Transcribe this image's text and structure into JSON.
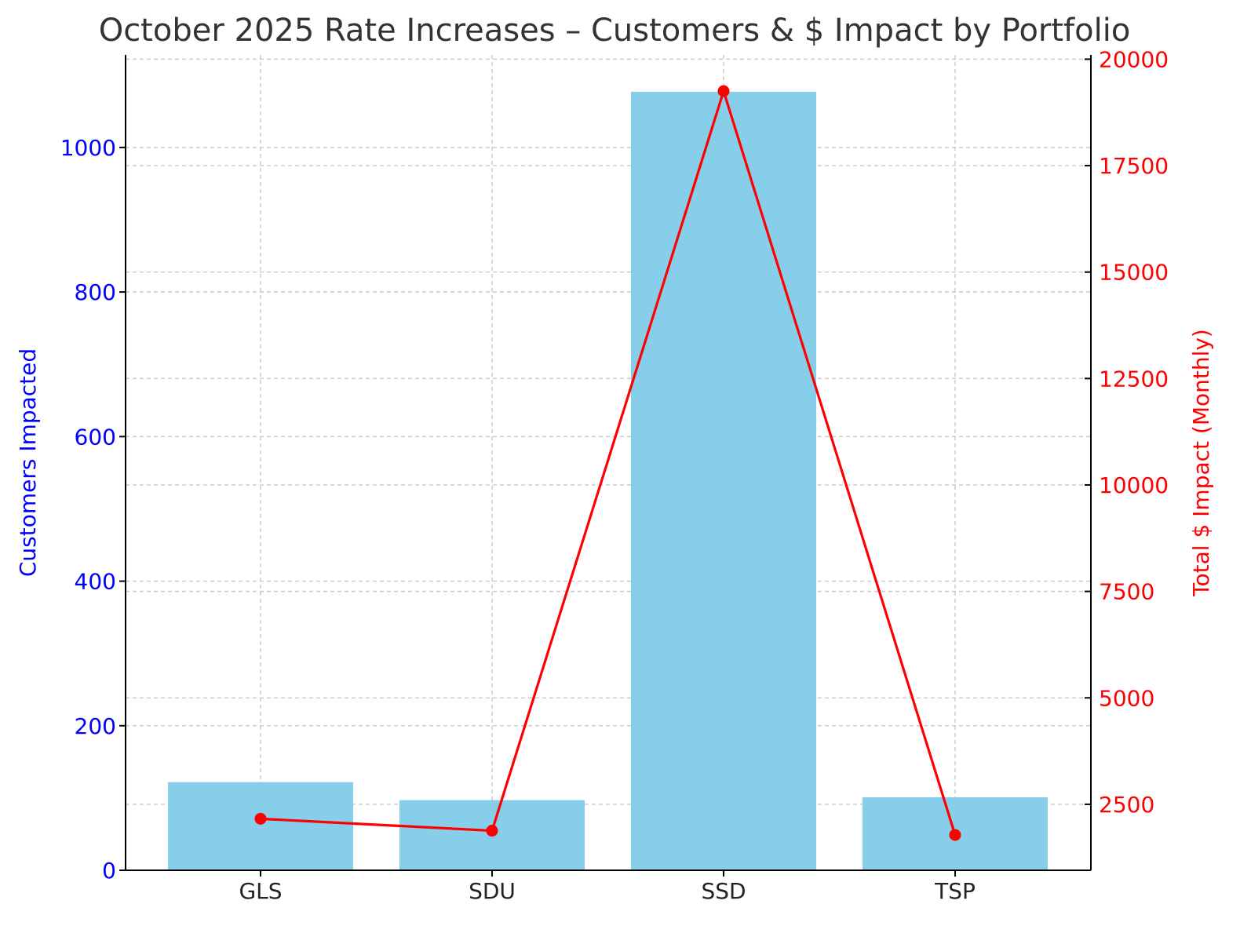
{
  "chart_data": {
    "type": "bar",
    "title": "October 2025 Rate Increases – Customers & $ Impact by Portfolio",
    "categories": [
      "GLS",
      "SDU",
      "SSD",
      "TSP"
    ],
    "series": [
      {
        "name": "Customers Impacted",
        "type": "bar",
        "axis": "left",
        "color": "#87CEEB",
        "values": [
          122,
          97,
          1077,
          101
        ]
      },
      {
        "name": "Total $ Impact (Monthly)",
        "type": "line",
        "axis": "right",
        "color": "#FF0000",
        "values": [
          2160,
          1880,
          19250,
          1780
        ]
      }
    ],
    "ylabel": "Customers Impacted",
    "y2label": "Total $ Impact (Monthly)",
    "ylim": [
      0,
      1128
    ],
    "y2lim": [
      950,
      20100
    ],
    "yticks": [
      "0",
      "200",
      "400",
      "600",
      "800",
      "1000"
    ],
    "y2ticks": [
      "2500",
      "5000",
      "7500",
      "10000",
      "12500",
      "15000",
      "17500",
      "20000"
    ],
    "grid": true,
    "left_axis_color": "#0000FF",
    "right_axis_color": "#FF0000"
  }
}
